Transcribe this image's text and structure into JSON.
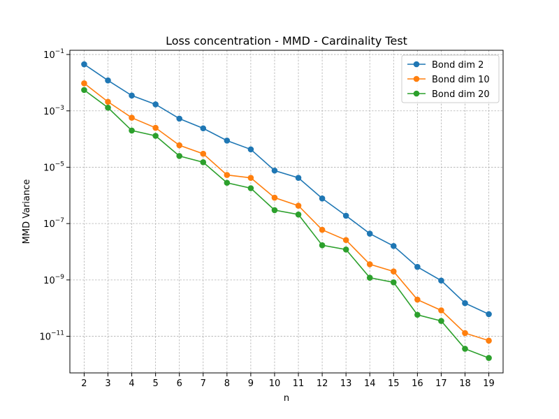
{
  "chart_data": {
    "type": "line",
    "title": "Loss concentration - MMD - Cardinality Test",
    "xlabel": "n",
    "ylabel": "MMD Variance",
    "yscale": "log",
    "grid": true,
    "legend_position": "top-right",
    "x": [
      2,
      3,
      4,
      5,
      6,
      7,
      8,
      9,
      10,
      11,
      12,
      13,
      14,
      15,
      16,
      17,
      18,
      19
    ],
    "xlim": [
      1.4,
      19.6
    ],
    "ylim_exponent": [
      -12.3,
      -0.85
    ],
    "y_ticks": [
      {
        "base": "10",
        "exp": "−1",
        "value": 0.1
      },
      {
        "base": "10",
        "exp": "−3",
        "value": 0.001
      },
      {
        "base": "10",
        "exp": "−5",
        "value": 1e-05
      },
      {
        "base": "10",
        "exp": "−7",
        "value": 1e-07
      },
      {
        "base": "10",
        "exp": "−9",
        "value": 1e-09
      },
      {
        "base": "10",
        "exp": "−11",
        "value": 1e-11
      }
    ],
    "series": [
      {
        "name": "Bond dim 2",
        "color": "#1f77b4",
        "values": [
          0.045,
          0.012,
          0.0035,
          0.0017,
          0.00053,
          0.00024,
          8.8e-05,
          4.3e-05,
          7.6e-06,
          4.2e-06,
          7.8e-07,
          1.9e-07,
          4.4e-08,
          1.6e-08,
          2.9e-09,
          9.5e-10,
          1.5e-10,
          6.1e-11
        ]
      },
      {
        "name": "Bond dim 10",
        "color": "#ff7f0e",
        "values": [
          0.0095,
          0.0021,
          0.00057,
          0.00025,
          6e-05,
          3e-05,
          5.3e-06,
          4.2e-06,
          8.3e-07,
          4.3e-07,
          6e-08,
          2.6e-08,
          3.6e-09,
          2e-09,
          2e-10,
          8.3e-11,
          1.3e-11,
          7e-12
        ]
      },
      {
        "name": "Bond dim 20",
        "color": "#2ca02c",
        "values": [
          0.0055,
          0.0013,
          0.0002,
          0.00013,
          2.5e-05,
          1.5e-05,
          2.8e-06,
          1.8e-06,
          3e-07,
          2.1e-07,
          1.7e-08,
          1.2e-08,
          1.2e-09,
          8.2e-10,
          5.8e-11,
          3.5e-11,
          3.6e-12,
          1.7e-12
        ]
      }
    ]
  }
}
